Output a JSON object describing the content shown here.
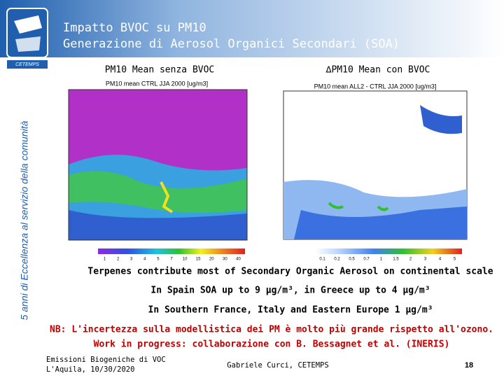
{
  "header": {
    "title": "Impatto BVOC su PM10",
    "subtitle": "Generazione di Aerosol Organici Secondari (SOA)",
    "logo_label": "CETEMPS"
  },
  "sidebar": "5 anni di Eccellenza al servizio della comunità",
  "panels": [
    {
      "label": "PM10 Mean senza BVOC",
      "map_title": "PM10 mean CTRL JJA 2000 [ug/m3]",
      "colorbar": [
        "1",
        "2",
        "3",
        "4",
        "5",
        "7",
        "10",
        "15",
        "20",
        "30",
        "40"
      ]
    },
    {
      "label": "∆PM10 Mean con BVOC",
      "map_title": "PM10 mean ALL2 - CTRL JJA 2000 [ug/m3]",
      "colorbar": [
        "0.1",
        "0.2",
        "0.5",
        "0.7",
        "1",
        "1.5",
        "2",
        "3",
        "4",
        "5"
      ]
    }
  ],
  "bullets": [
    "Terpenes contribute most of Secondary Organic Aerosol on continental scale",
    "In Spain SOA up to 9 μg/m³, in Greece up to 4 μg/m³",
    "In Southern France, Italy and Eastern Europe 1 μg/m³"
  ],
  "note": [
    "NB: L'incertezza sulla modellistica dei PM è molto più grande rispetto all'ozono.",
    "Work in progress: collaborazione con B. Bessagnet et al. (INERIS)"
  ],
  "footer": {
    "event": "Emissioni Biogeniche di VOC",
    "date": "L'Aquila, 10/30/2020",
    "author": "Gabriele Curci, CETEMPS",
    "page": "18"
  }
}
